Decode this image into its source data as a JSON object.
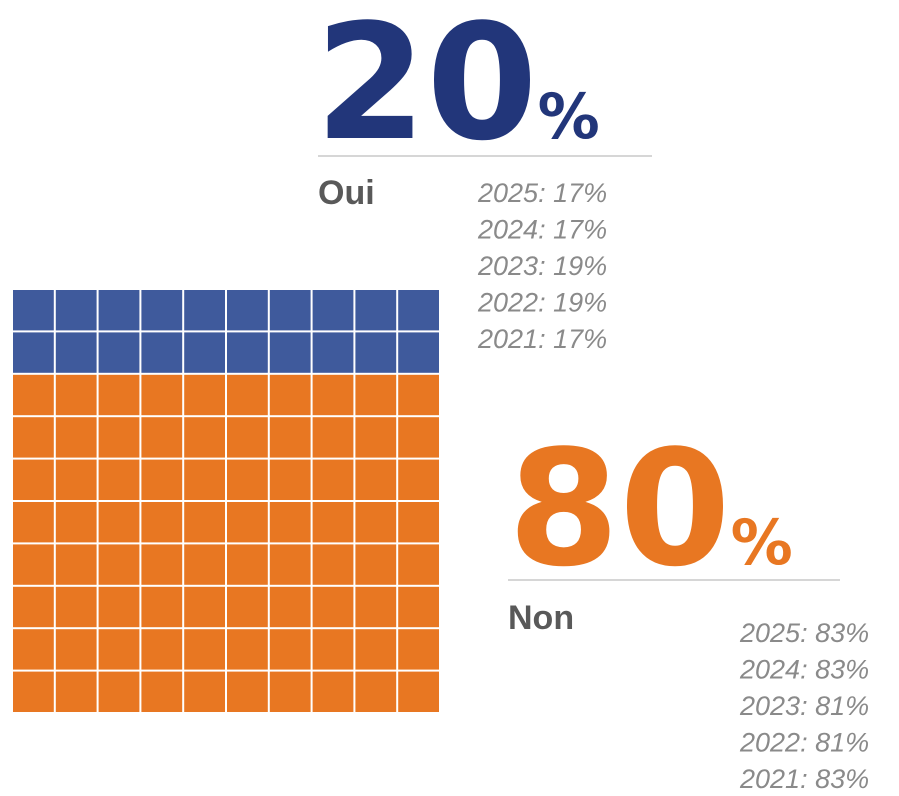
{
  "chart_data": {
    "type": "waffle",
    "columns": 10,
    "rows": 10,
    "series": [
      {
        "name": "Oui",
        "value": 20,
        "value_label": "20%",
        "color": "#3f5a9c",
        "label_color": "#22367a",
        "history": [
          "2025: 17%",
          "2024: 17%",
          "2023: 19%",
          "2022: 19%",
          "2021: 17%"
        ]
      },
      {
        "name": "Non",
        "value": 80,
        "value_label": "80%",
        "color": "#e87722",
        "label_color": "#e87722",
        "history": [
          "2025: 83%",
          "2024: 83%",
          "2023: 81%",
          "2022: 81%",
          "2021: 83%"
        ]
      }
    ]
  }
}
